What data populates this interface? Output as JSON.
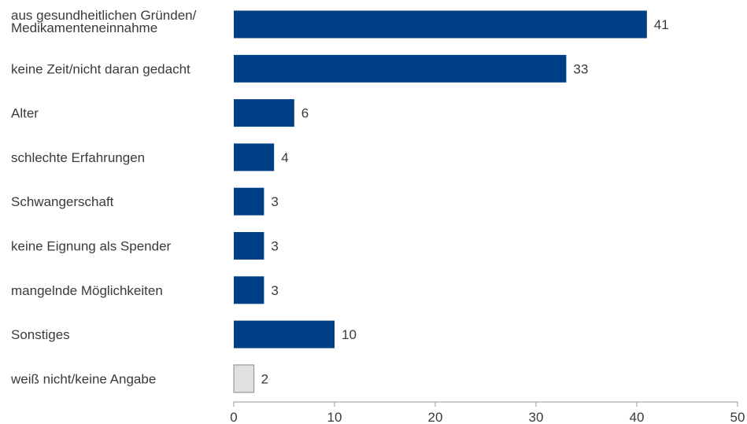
{
  "chart_data": {
    "type": "bar",
    "orientation": "horizontal",
    "categories": [
      [
        "aus gesundheitlichen Gründen/",
        "Medikamenteneinnahme"
      ],
      [
        "keine Zeit/nicht daran gedacht"
      ],
      [
        "Alter"
      ],
      [
        "schlechte Erfahrungen"
      ],
      [
        "Schwangerschaft"
      ],
      [
        "keine Eignung als Spender"
      ],
      [
        "mangelnde Möglichkeiten"
      ],
      [
        "Sonstiges"
      ],
      [
        "weiß nicht/keine Angabe"
      ]
    ],
    "values": [
      41,
      33,
      6,
      4,
      3,
      3,
      3,
      10,
      2
    ],
    "colors": [
      "#003f85",
      "#003f85",
      "#003f85",
      "#003f85",
      "#003f85",
      "#003f85",
      "#003f85",
      "#003f85",
      "#e0e0e0"
    ],
    "xlim": [
      0,
      50
    ],
    "xticks": [
      0,
      10,
      20,
      30,
      40,
      50
    ],
    "grid": false
  },
  "style": {
    "bar_color": "#003f85",
    "bar_color_muted": "#e0e0e0",
    "bar_stroke_muted": "#8a8a8a",
    "axis_color": "#9a9a9a",
    "text_color": "#3a3a3a"
  }
}
